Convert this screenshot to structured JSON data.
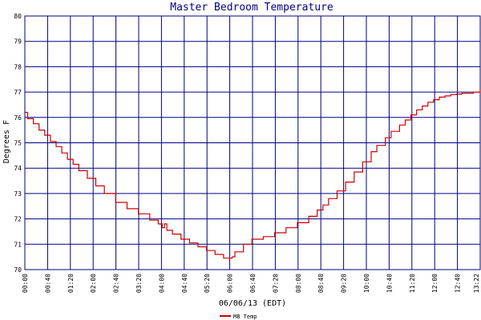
{
  "chart_data": {
    "type": "line",
    "title": "Master Bedroom Temperature",
    "xlabel": "06/06/13 (EDT)",
    "ylabel": "Degrees F",
    "ylim": [
      70,
      80
    ],
    "yticks": [
      "70",
      "71",
      "72",
      "73",
      "74",
      "75",
      "76",
      "77",
      "78",
      "79",
      "80"
    ],
    "xticks": [
      "00:00",
      "00:40",
      "01:20",
      "02:00",
      "02:40",
      "03:20",
      "04:00",
      "04:40",
      "05:20",
      "06:00",
      "06:40",
      "07:20",
      "08:00",
      "08:40",
      "09:20",
      "10:00",
      "10:40",
      "11:20",
      "12:00",
      "12:40",
      "13:22"
    ],
    "xlim_minutes": [
      0,
      802
    ],
    "grid": true,
    "legend": "bottom-left",
    "colors": {
      "grid": "#000080",
      "series": "#cc0000",
      "title": "#000080"
    },
    "series": [
      {
        "name": "MB Temp",
        "x_minutes": [
          0,
          5,
          15,
          25,
          35,
          45,
          55,
          65,
          75,
          85,
          95,
          110,
          125,
          140,
          160,
          180,
          200,
          220,
          235,
          242,
          246,
          250,
          260,
          275,
          290,
          305,
          320,
          335,
          350,
          365,
          370,
          385,
          400,
          420,
          440,
          460,
          480,
          500,
          515,
          525,
          535,
          550,
          565,
          580,
          595,
          610,
          620,
          635,
          645,
          660,
          670,
          680,
          690,
          700,
          710,
          720,
          730,
          740,
          750,
          760,
          770,
          780,
          790,
          796,
          802
        ],
        "values": [
          76.2,
          75.95,
          75.75,
          75.5,
          75.3,
          75.05,
          74.85,
          74.6,
          74.35,
          74.15,
          73.9,
          73.6,
          73.3,
          73.0,
          72.65,
          72.4,
          72.2,
          71.95,
          71.8,
          71.65,
          71.8,
          71.55,
          71.4,
          71.2,
          71.05,
          70.9,
          70.75,
          70.6,
          70.45,
          70.5,
          70.7,
          71.0,
          71.2,
          71.3,
          71.45,
          71.65,
          71.85,
          72.1,
          72.35,
          72.55,
          72.8,
          73.1,
          73.45,
          73.85,
          74.25,
          74.65,
          74.9,
          75.2,
          75.45,
          75.7,
          75.9,
          76.1,
          76.3,
          76.45,
          76.6,
          76.7,
          76.8,
          76.85,
          76.9,
          76.92,
          76.95,
          76.95,
          77.0,
          77.0,
          77.1
        ]
      }
    ]
  }
}
